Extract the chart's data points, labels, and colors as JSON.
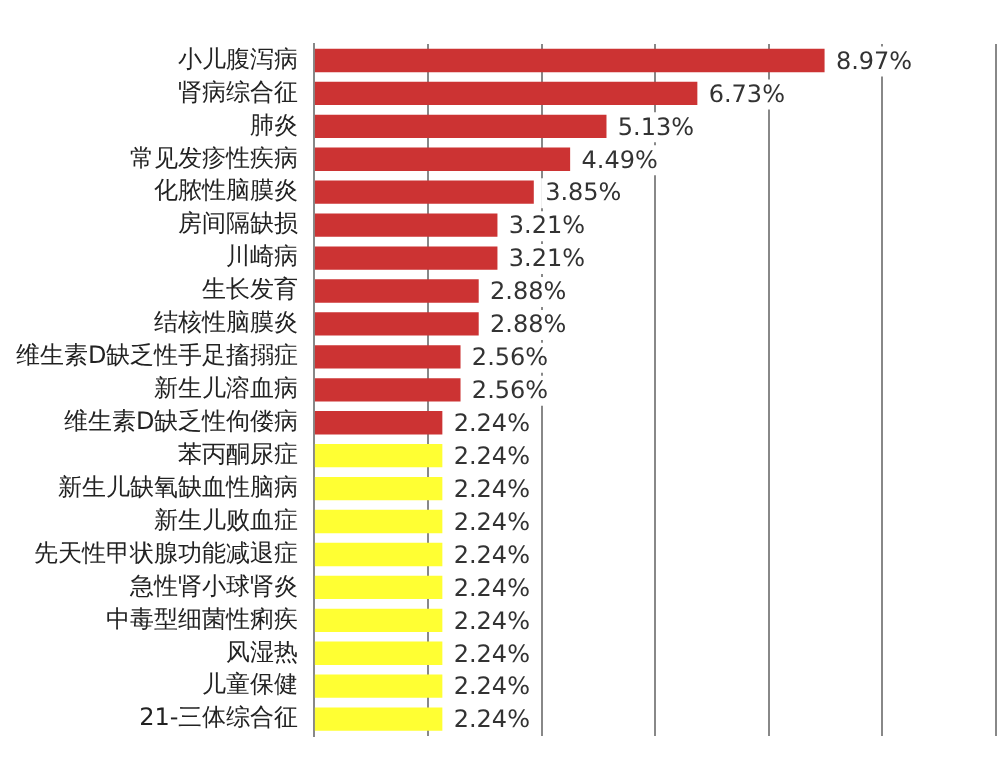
{
  "chart_data": {
    "type": "bar",
    "orientation": "horizontal",
    "categories": [
      "小儿腹泻病",
      "肾病综合征",
      "肺炎",
      "常见发疹性疾病",
      "化脓性脑膜炎",
      "房间隔缺损",
      "川崎病",
      "生长发育",
      "结核性脑膜炎",
      "维生素D缺乏性手足搐搦症",
      "新生儿溶血病",
      "维生素D缺乏性佝偻病",
      "苯丙酮尿症",
      "新生儿缺氧缺血性脑病",
      "新生儿败血症",
      "先天性甲状腺功能减退症",
      "急性肾小球肾炎",
      "中毒型细菌性痢疾",
      "风湿热",
      "儿童保健",
      "21-三体综合征"
    ],
    "values": [
      8.97,
      6.73,
      5.13,
      4.49,
      3.85,
      3.21,
      3.21,
      2.88,
      2.88,
      2.56,
      2.56,
      2.24,
      2.24,
      2.24,
      2.24,
      2.24,
      2.24,
      2.24,
      2.24,
      2.24,
      2.24
    ],
    "value_labels": [
      "8.97%",
      "6.73%",
      "5.13%",
      "4.49%",
      "3.85%",
      "3.21%",
      "3.21%",
      "2.88%",
      "2.88%",
      "2.56%",
      "2.56%",
      "2.24%",
      "2.24%",
      "2.24%",
      "2.24%",
      "2.24%",
      "2.24%",
      "2.24%",
      "2.24%",
      "2.24%",
      "2.24%"
    ],
    "colors": [
      "#cc3333",
      "#cc3333",
      "#cc3333",
      "#cc3333",
      "#cc3333",
      "#cc3333",
      "#cc3333",
      "#cc3333",
      "#cc3333",
      "#cc3333",
      "#cc3333",
      "#cc3333",
      "#ffff33",
      "#ffff33",
      "#ffff33",
      "#ffff33",
      "#ffff33",
      "#ffff33",
      "#ffff33",
      "#ffff33",
      "#ffff33"
    ],
    "xlim": [
      0,
      12
    ],
    "xticks": [
      {
        "value": 0,
        "label": null
      },
      {
        "value": 2,
        "label": null
      },
      {
        "value": 4,
        "label": null
      },
      {
        "value": 6,
        "label": null
      },
      {
        "value": 8,
        "label": null
      },
      {
        "value": 10,
        "label": null
      },
      {
        "value": 12,
        "label": null
      }
    ],
    "grid": "x",
    "tick_labels": "y"
  }
}
